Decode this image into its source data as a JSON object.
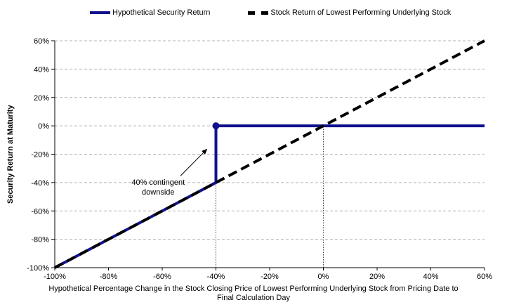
{
  "chart_data": {
    "type": "line",
    "title": "",
    "ylabel": "Security Return at Maturity",
    "xlabel_lines": [
      "Hypothetical Percentage Change in the Stock Closing Price of Lowest Performing Underlying  Stock from Pricing Date to",
      "Final Calculation Day"
    ],
    "xlim": [
      -100,
      60
    ],
    "ylim": [
      -100,
      60
    ],
    "x_ticks": [
      -100,
      -80,
      -60,
      -40,
      -20,
      0,
      20,
      40,
      60
    ],
    "y_ticks": [
      60,
      40,
      20,
      0,
      -20,
      -40,
      -60,
      -80,
      -100
    ],
    "tick_suffix": "%",
    "grid": "horizontal dashed",
    "grid_color": "#b3b3b3",
    "legend_position": "top",
    "series": [
      {
        "name": "Hypothetical Security Return",
        "style": "solid",
        "color": "#11118f",
        "width": 4,
        "points": [
          [
            -100,
            -100
          ],
          [
            -40,
            -40
          ],
          [
            -40,
            0
          ],
          [
            60,
            0
          ]
        ],
        "marker": {
          "x": -40,
          "y": 0,
          "shape": "circle",
          "radius": 5
        }
      },
      {
        "name": "Stock Return of Lowest Performing Underlying Stock",
        "style": "dashed",
        "color": "#000000",
        "width": 4,
        "points": [
          [
            -100,
            -100
          ],
          [
            60,
            60
          ]
        ]
      }
    ],
    "reference_lines": [
      {
        "axis": "x",
        "value": -40,
        "from": -100,
        "to": 0
      },
      {
        "axis": "x",
        "value": 0,
        "from": -100,
        "to": 0
      }
    ],
    "annotation": {
      "lines": [
        "40% contingent",
        "downside"
      ],
      "text_x": -61.5,
      "text_y": -41.5,
      "arrow": {
        "x1": -53.2,
        "y1": -35.3,
        "x2": -43.4,
        "y2": -16.5
      }
    }
  }
}
